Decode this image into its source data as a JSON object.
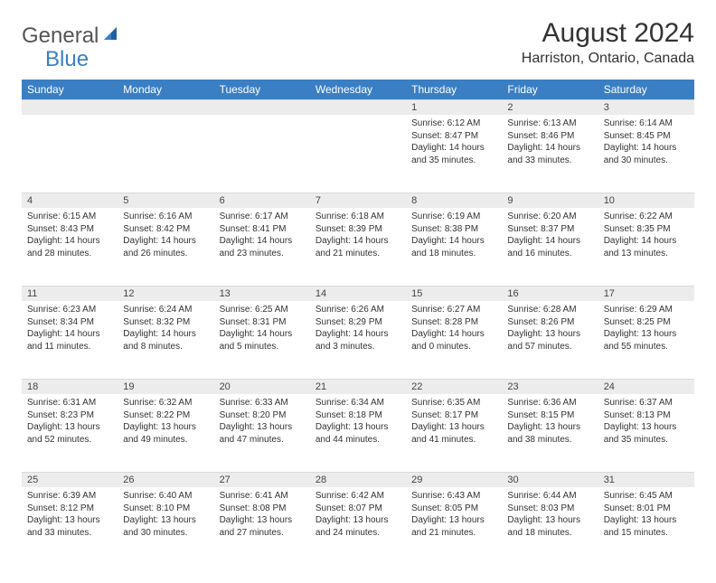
{
  "logo": {
    "general": "General",
    "blue": "Blue"
  },
  "title": "August 2024",
  "location": "Harriston, Ontario, Canada",
  "colors": {
    "header_bg": "#3a7fc4",
    "header_fg": "#ffffff",
    "daynum_bg": "#ececec",
    "text": "#333333",
    "logo_gray": "#555555",
    "logo_blue": "#3a7fc4"
  },
  "weekdays": [
    "Sunday",
    "Monday",
    "Tuesday",
    "Wednesday",
    "Thursday",
    "Friday",
    "Saturday"
  ],
  "weeks": [
    [
      null,
      null,
      null,
      null,
      {
        "n": "1",
        "sr": "Sunrise: 6:12 AM",
        "ss": "Sunset: 8:47 PM",
        "dl": "Daylight: 14 hours and 35 minutes."
      },
      {
        "n": "2",
        "sr": "Sunrise: 6:13 AM",
        "ss": "Sunset: 8:46 PM",
        "dl": "Daylight: 14 hours and 33 minutes."
      },
      {
        "n": "3",
        "sr": "Sunrise: 6:14 AM",
        "ss": "Sunset: 8:45 PM",
        "dl": "Daylight: 14 hours and 30 minutes."
      }
    ],
    [
      {
        "n": "4",
        "sr": "Sunrise: 6:15 AM",
        "ss": "Sunset: 8:43 PM",
        "dl": "Daylight: 14 hours and 28 minutes."
      },
      {
        "n": "5",
        "sr": "Sunrise: 6:16 AM",
        "ss": "Sunset: 8:42 PM",
        "dl": "Daylight: 14 hours and 26 minutes."
      },
      {
        "n": "6",
        "sr": "Sunrise: 6:17 AM",
        "ss": "Sunset: 8:41 PM",
        "dl": "Daylight: 14 hours and 23 minutes."
      },
      {
        "n": "7",
        "sr": "Sunrise: 6:18 AM",
        "ss": "Sunset: 8:39 PM",
        "dl": "Daylight: 14 hours and 21 minutes."
      },
      {
        "n": "8",
        "sr": "Sunrise: 6:19 AM",
        "ss": "Sunset: 8:38 PM",
        "dl": "Daylight: 14 hours and 18 minutes."
      },
      {
        "n": "9",
        "sr": "Sunrise: 6:20 AM",
        "ss": "Sunset: 8:37 PM",
        "dl": "Daylight: 14 hours and 16 minutes."
      },
      {
        "n": "10",
        "sr": "Sunrise: 6:22 AM",
        "ss": "Sunset: 8:35 PM",
        "dl": "Daylight: 14 hours and 13 minutes."
      }
    ],
    [
      {
        "n": "11",
        "sr": "Sunrise: 6:23 AM",
        "ss": "Sunset: 8:34 PM",
        "dl": "Daylight: 14 hours and 11 minutes."
      },
      {
        "n": "12",
        "sr": "Sunrise: 6:24 AM",
        "ss": "Sunset: 8:32 PM",
        "dl": "Daylight: 14 hours and 8 minutes."
      },
      {
        "n": "13",
        "sr": "Sunrise: 6:25 AM",
        "ss": "Sunset: 8:31 PM",
        "dl": "Daylight: 14 hours and 5 minutes."
      },
      {
        "n": "14",
        "sr": "Sunrise: 6:26 AM",
        "ss": "Sunset: 8:29 PM",
        "dl": "Daylight: 14 hours and 3 minutes."
      },
      {
        "n": "15",
        "sr": "Sunrise: 6:27 AM",
        "ss": "Sunset: 8:28 PM",
        "dl": "Daylight: 14 hours and 0 minutes."
      },
      {
        "n": "16",
        "sr": "Sunrise: 6:28 AM",
        "ss": "Sunset: 8:26 PM",
        "dl": "Daylight: 13 hours and 57 minutes."
      },
      {
        "n": "17",
        "sr": "Sunrise: 6:29 AM",
        "ss": "Sunset: 8:25 PM",
        "dl": "Daylight: 13 hours and 55 minutes."
      }
    ],
    [
      {
        "n": "18",
        "sr": "Sunrise: 6:31 AM",
        "ss": "Sunset: 8:23 PM",
        "dl": "Daylight: 13 hours and 52 minutes."
      },
      {
        "n": "19",
        "sr": "Sunrise: 6:32 AM",
        "ss": "Sunset: 8:22 PM",
        "dl": "Daylight: 13 hours and 49 minutes."
      },
      {
        "n": "20",
        "sr": "Sunrise: 6:33 AM",
        "ss": "Sunset: 8:20 PM",
        "dl": "Daylight: 13 hours and 47 minutes."
      },
      {
        "n": "21",
        "sr": "Sunrise: 6:34 AM",
        "ss": "Sunset: 8:18 PM",
        "dl": "Daylight: 13 hours and 44 minutes."
      },
      {
        "n": "22",
        "sr": "Sunrise: 6:35 AM",
        "ss": "Sunset: 8:17 PM",
        "dl": "Daylight: 13 hours and 41 minutes."
      },
      {
        "n": "23",
        "sr": "Sunrise: 6:36 AM",
        "ss": "Sunset: 8:15 PM",
        "dl": "Daylight: 13 hours and 38 minutes."
      },
      {
        "n": "24",
        "sr": "Sunrise: 6:37 AM",
        "ss": "Sunset: 8:13 PM",
        "dl": "Daylight: 13 hours and 35 minutes."
      }
    ],
    [
      {
        "n": "25",
        "sr": "Sunrise: 6:39 AM",
        "ss": "Sunset: 8:12 PM",
        "dl": "Daylight: 13 hours and 33 minutes."
      },
      {
        "n": "26",
        "sr": "Sunrise: 6:40 AM",
        "ss": "Sunset: 8:10 PM",
        "dl": "Daylight: 13 hours and 30 minutes."
      },
      {
        "n": "27",
        "sr": "Sunrise: 6:41 AM",
        "ss": "Sunset: 8:08 PM",
        "dl": "Daylight: 13 hours and 27 minutes."
      },
      {
        "n": "28",
        "sr": "Sunrise: 6:42 AM",
        "ss": "Sunset: 8:07 PM",
        "dl": "Daylight: 13 hours and 24 minutes."
      },
      {
        "n": "29",
        "sr": "Sunrise: 6:43 AM",
        "ss": "Sunset: 8:05 PM",
        "dl": "Daylight: 13 hours and 21 minutes."
      },
      {
        "n": "30",
        "sr": "Sunrise: 6:44 AM",
        "ss": "Sunset: 8:03 PM",
        "dl": "Daylight: 13 hours and 18 minutes."
      },
      {
        "n": "31",
        "sr": "Sunrise: 6:45 AM",
        "ss": "Sunset: 8:01 PM",
        "dl": "Daylight: 13 hours and 15 minutes."
      }
    ]
  ]
}
